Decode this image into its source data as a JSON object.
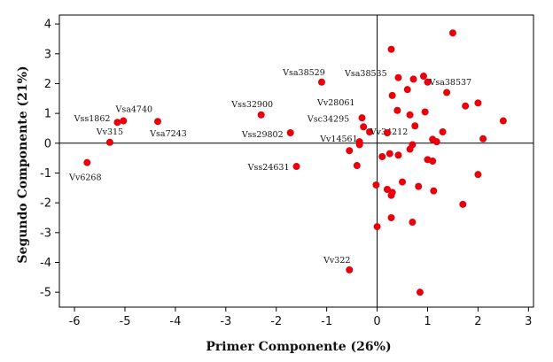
{
  "chart_data": {
    "type": "scatter",
    "xlabel": "Primer Componente (26%)",
    "ylabel": "Segundo Componente (21%)",
    "xlim": [
      -6.3,
      3.1
    ],
    "ylim": [
      -5.5,
      4.3
    ],
    "xticks": [
      -6,
      -5,
      -4,
      -3,
      -2,
      -1,
      0,
      1,
      2,
      3
    ],
    "yticks": [
      4,
      3,
      2,
      1,
      0,
      -1,
      -2,
      -3,
      -4,
      -5
    ],
    "grid": false,
    "reference_lines": {
      "x": 0,
      "y": 0
    },
    "point_color": "#e8000b",
    "axis_color": "#000000",
    "points": [
      {
        "x": -5.75,
        "y": -0.65,
        "label": "Vv6268"
      },
      {
        "x": -5.3,
        "y": 0.03,
        "label": "Vv315"
      },
      {
        "x": -5.15,
        "y": 0.7,
        "label": "Vss1862"
      },
      {
        "x": -5.03,
        "y": 0.75,
        "label": "Vsa4740"
      },
      {
        "x": -4.35,
        "y": 0.73,
        "label": "Vsa7243"
      },
      {
        "x": -2.3,
        "y": 0.95,
        "label": "Vss32900"
      },
      {
        "x": -1.72,
        "y": 0.35,
        "label": "Vss29802"
      },
      {
        "x": -1.6,
        "y": -0.78,
        "label": "Vss24631"
      },
      {
        "x": -1.1,
        "y": 2.05,
        "label": "Vsa38529"
      },
      {
        "x": -0.55,
        "y": -4.25,
        "label": "Vv322"
      },
      {
        "x": -0.3,
        "y": 0.85,
        "label": "Vv28061"
      },
      {
        "x": -0.27,
        "y": 0.55,
        "label": "Vsc34295"
      },
      {
        "x": -0.15,
        "y": 0.38,
        "label": "Vv34212"
      },
      {
        "x": -0.35,
        "y": 0.05,
        "label": "Vv14561"
      },
      {
        "x": 0.3,
        "y": 1.6,
        "label": "Vsa38535"
      },
      {
        "x": 1.0,
        "y": 2.05,
        "label": "Vsa38537"
      },
      {
        "x": 1.5,
        "y": 3.7,
        "label": ""
      },
      {
        "x": 0.28,
        "y": 3.15,
        "label": ""
      },
      {
        "x": 0.42,
        "y": 2.2,
        "label": ""
      },
      {
        "x": 0.72,
        "y": 2.15,
        "label": ""
      },
      {
        "x": 0.92,
        "y": 2.25,
        "label": ""
      },
      {
        "x": 0.6,
        "y": 1.8,
        "label": ""
      },
      {
        "x": 1.38,
        "y": 1.7,
        "label": ""
      },
      {
        "x": 0.4,
        "y": 1.1,
        "label": ""
      },
      {
        "x": 0.65,
        "y": 0.95,
        "label": ""
      },
      {
        "x": 0.95,
        "y": 1.05,
        "label": ""
      },
      {
        "x": 0.75,
        "y": 0.58,
        "label": ""
      },
      {
        "x": 0.2,
        "y": 0.35,
        "label": ""
      },
      {
        "x": 1.3,
        "y": 0.38,
        "label": ""
      },
      {
        "x": 1.1,
        "y": 0.13,
        "label": ""
      },
      {
        "x": 1.18,
        "y": 0.05,
        "label": ""
      },
      {
        "x": 1.75,
        "y": 1.25,
        "label": ""
      },
      {
        "x": 2.0,
        "y": 1.35,
        "label": ""
      },
      {
        "x": 2.5,
        "y": 0.75,
        "label": ""
      },
      {
        "x": 2.1,
        "y": 0.15,
        "label": ""
      },
      {
        "x": -0.55,
        "y": -0.25,
        "label": ""
      },
      {
        "x": -0.35,
        "y": -0.05,
        "label": ""
      },
      {
        "x": -0.4,
        "y": -0.75,
        "label": ""
      },
      {
        "x": 0.1,
        "y": -0.45,
        "label": ""
      },
      {
        "x": 0.25,
        "y": -0.35,
        "label": ""
      },
      {
        "x": 0.42,
        "y": -0.4,
        "label": ""
      },
      {
        "x": 0.7,
        "y": -0.05,
        "label": ""
      },
      {
        "x": 0.65,
        "y": -0.2,
        "label": ""
      },
      {
        "x": 1.0,
        "y": -0.55,
        "label": ""
      },
      {
        "x": 1.1,
        "y": -0.6,
        "label": ""
      },
      {
        "x": 0.5,
        "y": -1.3,
        "label": ""
      },
      {
        "x": 0.82,
        "y": -1.45,
        "label": ""
      },
      {
        "x": 0.2,
        "y": -1.55,
        "label": ""
      },
      {
        "x": 0.3,
        "y": -1.65,
        "label": ""
      },
      {
        "x": 0.28,
        "y": -1.75,
        "label": ""
      },
      {
        "x": 1.12,
        "y": -1.6,
        "label": ""
      },
      {
        "x": -0.02,
        "y": -1.4,
        "label": ""
      },
      {
        "x": 2.0,
        "y": -1.05,
        "label": ""
      },
      {
        "x": 1.7,
        "y": -2.05,
        "label": ""
      },
      {
        "x": 0.28,
        "y": -2.5,
        "label": ""
      },
      {
        "x": 0.7,
        "y": -2.65,
        "label": ""
      },
      {
        "x": 0.0,
        "y": -2.8,
        "label": ""
      },
      {
        "x": 0.85,
        "y": -5.0,
        "label": ""
      }
    ]
  }
}
